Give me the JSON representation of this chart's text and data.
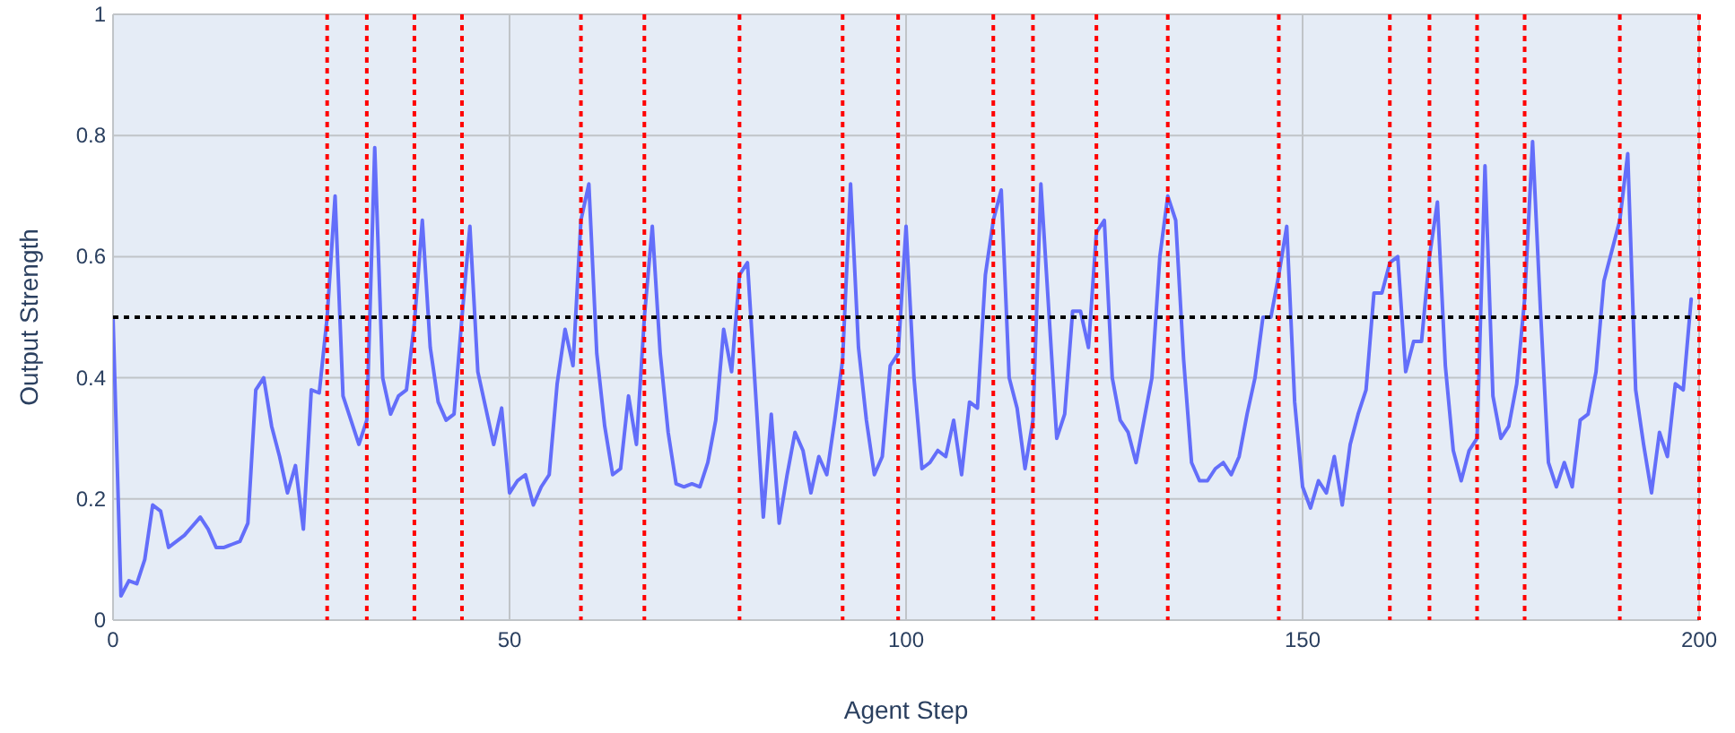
{
  "chart_data": {
    "type": "line",
    "xlabel": "Agent Step",
    "ylabel": "Output Strength",
    "x": [
      0,
      1,
      2,
      3,
      4,
      5,
      6,
      7,
      8,
      9,
      10,
      11,
      12,
      13,
      14,
      15,
      16,
      17,
      18,
      19,
      20,
      21,
      22,
      23,
      24,
      25,
      26,
      27,
      28,
      29,
      30,
      31,
      32,
      33,
      34,
      35,
      36,
      37,
      38,
      39,
      40,
      41,
      42,
      43,
      44,
      45,
      46,
      47,
      48,
      49,
      50,
      51,
      52,
      53,
      54,
      55,
      56,
      57,
      58,
      59,
      60,
      61,
      62,
      63,
      64,
      65,
      66,
      67,
      68,
      69,
      70,
      71,
      72,
      73,
      74,
      75,
      76,
      77,
      78,
      79,
      80,
      81,
      82,
      83,
      84,
      85,
      86,
      87,
      88,
      89,
      90,
      91,
      92,
      93,
      94,
      95,
      96,
      97,
      98,
      99,
      100,
      101,
      102,
      103,
      104,
      105,
      106,
      107,
      108,
      109,
      110,
      111,
      112,
      113,
      114,
      115,
      116,
      117,
      118,
      119,
      120,
      121,
      122,
      123,
      124,
      125,
      126,
      127,
      128,
      129,
      130,
      131,
      132,
      133,
      134,
      135,
      136,
      137,
      138,
      139,
      140,
      141,
      142,
      143,
      144,
      145,
      146,
      147,
      148,
      149,
      150,
      151,
      152,
      153,
      154,
      155,
      156,
      157,
      158,
      159,
      160,
      161,
      162,
      163,
      164,
      165,
      166,
      167,
      168,
      169,
      170,
      171,
      172,
      173,
      174,
      175,
      176,
      177,
      178,
      179,
      180,
      181,
      182,
      183,
      184,
      185,
      186,
      187,
      188,
      189,
      190,
      191,
      192,
      193,
      194,
      195,
      196,
      197,
      198,
      199
    ],
    "series": [
      {
        "color": "#636efa",
        "values": [
          0.5,
          0.04,
          0.065,
          0.06,
          0.1,
          0.19,
          0.18,
          0.12,
          0.13,
          0.14,
          0.155,
          0.17,
          0.15,
          0.12,
          0.12,
          0.125,
          0.13,
          0.16,
          0.38,
          0.4,
          0.32,
          0.27,
          0.21,
          0.255,
          0.15,
          0.38,
          0.375,
          0.5,
          0.7,
          0.37,
          0.33,
          0.29,
          0.33,
          0.78,
          0.4,
          0.34,
          0.37,
          0.38,
          0.49,
          0.66,
          0.45,
          0.36,
          0.33,
          0.34,
          0.5,
          0.65,
          0.41,
          0.35,
          0.29,
          0.35,
          0.21,
          0.23,
          0.24,
          0.19,
          0.22,
          0.24,
          0.39,
          0.48,
          0.42,
          0.66,
          0.72,
          0.44,
          0.32,
          0.24,
          0.25,
          0.37,
          0.29,
          0.5,
          0.65,
          0.44,
          0.31,
          0.225,
          0.22,
          0.225,
          0.22,
          0.26,
          0.33,
          0.48,
          0.41,
          0.57,
          0.59,
          0.38,
          0.17,
          0.34,
          0.16,
          0.24,
          0.31,
          0.28,
          0.21,
          0.27,
          0.24,
          0.33,
          0.43,
          0.72,
          0.45,
          0.33,
          0.24,
          0.27,
          0.42,
          0.44,
          0.65,
          0.4,
          0.25,
          0.26,
          0.28,
          0.27,
          0.33,
          0.24,
          0.36,
          0.35,
          0.57,
          0.66,
          0.71,
          0.4,
          0.35,
          0.25,
          0.33,
          0.72,
          0.51,
          0.3,
          0.34,
          0.51,
          0.51,
          0.45,
          0.64,
          0.66,
          0.4,
          0.33,
          0.31,
          0.26,
          0.33,
          0.4,
          0.6,
          0.7,
          0.66,
          0.43,
          0.26,
          0.23,
          0.23,
          0.25,
          0.26,
          0.24,
          0.27,
          0.34,
          0.4,
          0.5,
          0.5,
          0.57,
          0.65,
          0.36,
          0.22,
          0.185,
          0.23,
          0.21,
          0.27,
          0.19,
          0.29,
          0.34,
          0.38,
          0.54,
          0.54,
          0.59,
          0.6,
          0.41,
          0.46,
          0.46,
          0.6,
          0.69,
          0.42,
          0.28,
          0.23,
          0.28,
          0.3,
          0.75,
          0.37,
          0.3,
          0.32,
          0.39,
          0.53,
          0.79,
          0.51,
          0.26,
          0.22,
          0.26,
          0.22,
          0.33,
          0.34,
          0.41,
          0.56,
          0.61,
          0.66,
          0.77,
          0.38,
          0.29,
          0.21,
          0.31,
          0.27,
          0.39,
          0.38,
          0.53
        ]
      }
    ],
    "xlim": [
      0,
      200
    ],
    "ylim": [
      0,
      1
    ],
    "xticks": [
      0,
      50,
      100,
      150,
      200
    ],
    "yticks": [
      0,
      0.2,
      0.4,
      0.6,
      0.8,
      1
    ],
    "grid": true,
    "marker": "none",
    "line_style": "solid",
    "ref_lines": [
      {
        "axis": "y",
        "value": 0.5,
        "color": "#000000",
        "line_style": "dotted"
      },
      {
        "axis": "x",
        "value": 27,
        "color": "#ff0000",
        "line_style": "dotted"
      },
      {
        "axis": "x",
        "value": 32,
        "color": "#ff0000",
        "line_style": "dotted"
      },
      {
        "axis": "x",
        "value": 38,
        "color": "#ff0000",
        "line_style": "dotted"
      },
      {
        "axis": "x",
        "value": 44,
        "color": "#ff0000",
        "line_style": "dotted"
      },
      {
        "axis": "x",
        "value": 59,
        "color": "#ff0000",
        "line_style": "dotted"
      },
      {
        "axis": "x",
        "value": 67,
        "color": "#ff0000",
        "line_style": "dotted"
      },
      {
        "axis": "x",
        "value": 79,
        "color": "#ff0000",
        "line_style": "dotted"
      },
      {
        "axis": "x",
        "value": 92,
        "color": "#ff0000",
        "line_style": "dotted"
      },
      {
        "axis": "x",
        "value": 99,
        "color": "#ff0000",
        "line_style": "dotted"
      },
      {
        "axis": "x",
        "value": 111,
        "color": "#ff0000",
        "line_style": "dotted"
      },
      {
        "axis": "x",
        "value": 116,
        "color": "#ff0000",
        "line_style": "dotted"
      },
      {
        "axis": "x",
        "value": 124,
        "color": "#ff0000",
        "line_style": "dotted"
      },
      {
        "axis": "x",
        "value": 133,
        "color": "#ff0000",
        "line_style": "dotted"
      },
      {
        "axis": "x",
        "value": 147,
        "color": "#ff0000",
        "line_style": "dotted"
      },
      {
        "axis": "x",
        "value": 161,
        "color": "#ff0000",
        "line_style": "dotted"
      },
      {
        "axis": "x",
        "value": 166,
        "color": "#ff0000",
        "line_style": "dotted"
      },
      {
        "axis": "x",
        "value": 172,
        "color": "#ff0000",
        "line_style": "dotted"
      },
      {
        "axis": "x",
        "value": 178,
        "color": "#ff0000",
        "line_style": "dotted"
      },
      {
        "axis": "x",
        "value": 190,
        "color": "#ff0000",
        "line_style": "dotted"
      },
      {
        "axis": "x",
        "value": 200,
        "color": "#ff0000",
        "line_style": "dotted"
      }
    ]
  }
}
